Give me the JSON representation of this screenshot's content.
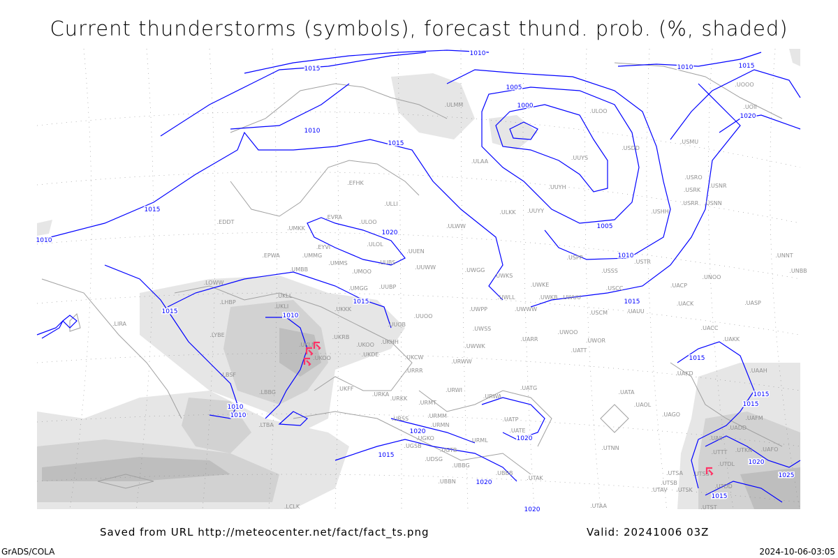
{
  "title": "Current thunderstorms (symbols), forecast thund. prob. (%, shaded)",
  "footer": {
    "saved_from": "Saved from URL http://meteocenter.net/fact/fact_ts.png",
    "valid": "Valid: 20241006 03Z",
    "software": "GrADS/COLA",
    "generated": "2024-10-06-03:05"
  },
  "colors": {
    "isobar": "#0000ff",
    "coastline": "#a0a0a0",
    "thunderstorm_symbol": "#ff3366",
    "probability_shading": [
      "#e6e6e6",
      "#d2d2d2",
      "#bebebe",
      "#aaaaaa"
    ]
  },
  "isobar_labels": [
    "1010",
    "1015",
    "1010",
    "1005",
    "1000",
    "1015",
    "1010",
    "1015",
    "1020",
    "1015",
    "1010",
    "1020",
    "1005",
    "1010",
    "1015",
    "1015",
    "1010",
    "1015",
    "1010",
    "1010",
    "1020",
    "1020",
    "1015",
    "1020",
    "1015",
    "1015",
    "1015",
    "1020",
    "1025",
    "1015",
    "1020"
  ],
  "stations": [
    "ULMM",
    "ULOO",
    "USDD",
    "USMU",
    "UOOO",
    "UOII",
    "UUYS",
    "ULAA",
    "UUYH",
    "USRO",
    "USRK",
    "USNR",
    "USRR",
    "USNN",
    "UUYY",
    "USHH",
    "ULKK",
    "ULWW",
    "EFHK",
    "ULLI",
    "EVRA",
    "ULOO",
    "UMKK",
    "EDDT",
    "ULOL",
    "UUEN",
    "EPWA",
    "UMMG",
    "EYVI",
    "UMMS",
    "UMOO",
    "UUBS",
    "UUWW",
    "UWGG",
    "UWKS",
    "UWKE",
    "USPP",
    "USSS",
    "USTR",
    "USCC",
    "UACP",
    "UNOO",
    "UNNT",
    "UNBB",
    "UMBB",
    "LOWW",
    "UMGG",
    "UUBP",
    "UKLL",
    "LHBP",
    "UKLI",
    "UWLL",
    "UWKB",
    "UWUU",
    "UWWW",
    "USCM",
    "UAUU",
    "UACK",
    "UASP",
    "UUOO",
    "UWPP",
    "UKKK",
    "UUOB",
    "LIRA",
    "LYBE",
    "UWSS",
    "UWOO",
    "UACC",
    "UARR",
    "UWOR",
    "UAKK",
    "UKHH",
    "UKOO",
    "UKRB",
    "UKCW",
    "UATT",
    "UWWK",
    "URWW",
    "UKOO",
    "UKDE",
    "LBSF",
    "URRR",
    "UAKD",
    "UAAH",
    "LBBG",
    "UKFF",
    "URKA",
    "URKK",
    "URWI",
    "URWA",
    "UATG",
    "UATA",
    "UAOL",
    "UAGO",
    "URMT",
    "URMM",
    "URMN",
    "UATP",
    "UATE",
    "URSS",
    "LTBA",
    "UAFM",
    "UADD",
    "UAII",
    "UGKO",
    "URML",
    "UGSB",
    "UTNN",
    "UTTT",
    "UTKN",
    "UAFO",
    "UGTB",
    "UDSG",
    "UBBG",
    "UTDL",
    "UTSA",
    "UTSS",
    "UTSB",
    "UBBB",
    "UTAK",
    "UBBN",
    "UTAV",
    "UTSK",
    "UTDD",
    "UTST",
    "UTAA",
    "LCLK",
    "UKLN"
  ],
  "thunderstorm_symbol_count": 4
}
